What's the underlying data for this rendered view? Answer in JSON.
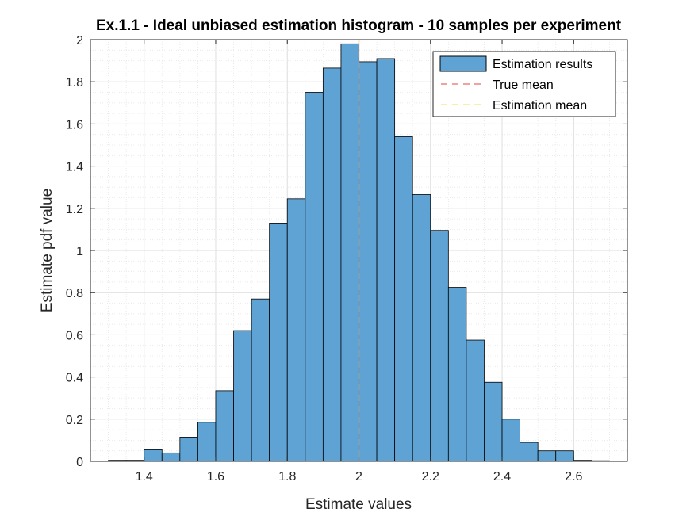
{
  "chart_data": {
    "type": "bar",
    "title": "Ex.1.1 - Ideal unbiased estimation histogram - 10 samples per experiment",
    "xlabel": "Estimate values",
    "ylabel": "Estimate pdf value",
    "xlim": [
      1.25,
      2.75
    ],
    "ylim": [
      0,
      2
    ],
    "xticks": [
      1.4,
      1.6,
      1.8,
      2,
      2.2,
      2.4,
      2.6
    ],
    "xtick_labels": [
      "1.4",
      "1.6",
      "1.8",
      "2",
      "2.2",
      "2.4",
      "2.6"
    ],
    "yticks": [
      0,
      0.2,
      0.4,
      0.6,
      0.8,
      1,
      1.2,
      1.4,
      1.6,
      1.8,
      2
    ],
    "ytick_labels": [
      "0",
      "0.2",
      "0.4",
      "0.6",
      "0.8",
      "1",
      "1.2",
      "1.4",
      "1.6",
      "1.8",
      "2"
    ],
    "grid": true,
    "minor_grid": true,
    "bin_edges": [
      1.3,
      1.35,
      1.4,
      1.45,
      1.5,
      1.55,
      1.6,
      1.65,
      1.7,
      1.75,
      1.8,
      1.85,
      1.9,
      1.95,
      2.0,
      2.05,
      2.1,
      2.15,
      2.2,
      2.25,
      2.3,
      2.35,
      2.4,
      2.45,
      2.5,
      2.55,
      2.6,
      2.65,
      2.7
    ],
    "values": [
      0.005,
      0.005,
      0.055,
      0.04,
      0.115,
      0.185,
      0.335,
      0.62,
      0.77,
      1.13,
      1.245,
      1.75,
      1.865,
      1.98,
      1.895,
      1.91,
      1.54,
      1.265,
      1.095,
      0.825,
      0.575,
      0.375,
      0.2,
      0.09,
      0.05,
      0.05,
      0.005,
      0.003
    ],
    "true_mean": 2.0,
    "estimation_mean": 2.0,
    "legend": {
      "placement": "top-right",
      "entries": [
        "Estimation results",
        "True mean",
        "Estimation mean"
      ]
    },
    "colors": {
      "bars": "#5fa3d5",
      "bar_edge": "#000000",
      "true_mean": "#e8473a",
      "estimation_mean": "#f0e24c",
      "grid": "#dedede"
    }
  }
}
